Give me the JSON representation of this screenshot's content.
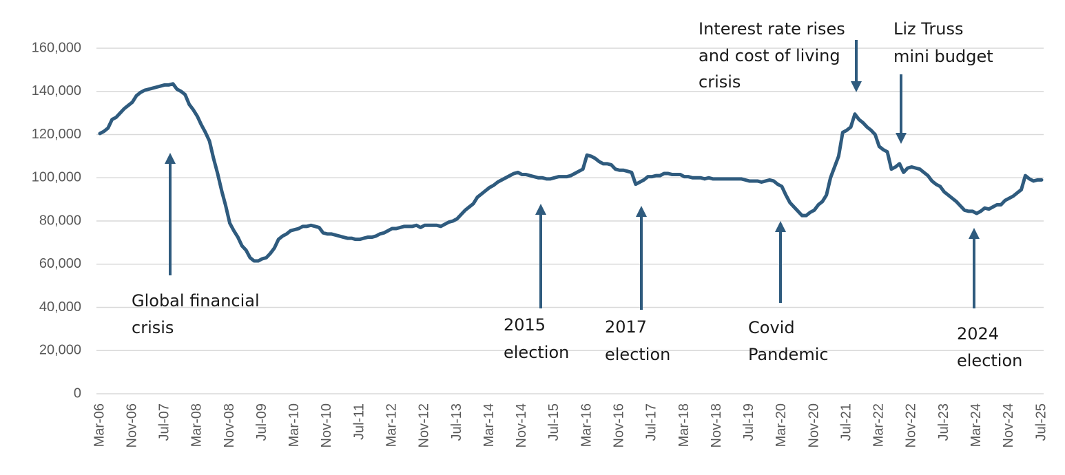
{
  "chart_data": {
    "type": "line",
    "color": "#2f5b7e",
    "grid": true,
    "annotations": [
      [
        "Global financial",
        "crisis"
      ],
      [
        "2015",
        "election"
      ],
      [
        "2017",
        "election"
      ],
      [
        "Covid",
        "Pandemic"
      ],
      [
        "Interest rate rises",
        "and cost of living",
        "crisis"
      ],
      [
        "Liz Truss",
        "mini budget"
      ],
      [
        "2024",
        "election"
      ]
    ],
    "ylim": [
      0,
      160000
    ],
    "yticks": [
      0,
      {
        "value": 20000,
        "label": "20,000"
      },
      {
        "value": 40000,
        "label": "40,000"
      },
      {
        "value": 60000,
        "label": "60,000"
      },
      {
        "value": 80000,
        "label": "80,000"
      },
      {
        "value": 100000,
        "label": "100,000"
      },
      {
        "value": 120000,
        "label": "120,000"
      },
      {
        "value": 140000,
        "label": "140,000"
      },
      {
        "value": 160000,
        "label": "160,000"
      }
    ],
    "categories": [
      "Mar-06",
      null,
      null,
      null,
      null,
      null,
      null,
      null,
      "Nov-06",
      null,
      null,
      null,
      null,
      null,
      null,
      null,
      "Jul-07",
      null,
      null,
      null,
      null,
      null,
      null,
      null,
      "Mar-08",
      null,
      null,
      null,
      null,
      null,
      null,
      null,
      "Nov-08",
      null,
      null,
      null,
      null,
      null,
      null,
      null,
      "Jul-09",
      null,
      null,
      null,
      null,
      null,
      null,
      null,
      "Mar-10",
      null,
      null,
      null,
      null,
      null,
      null,
      null,
      "Nov-10",
      null,
      null,
      null,
      null,
      null,
      null,
      null,
      "Jul-11",
      null,
      null,
      null,
      null,
      null,
      null,
      null,
      "Mar-12",
      null,
      null,
      null,
      null,
      null,
      null,
      null,
      "Nov-12",
      null,
      null,
      null,
      null,
      null,
      null,
      null,
      "Jul-13",
      null,
      null,
      null,
      null,
      null,
      null,
      null,
      "Mar-14",
      null,
      null,
      null,
      null,
      null,
      null,
      null,
      "Nov-14",
      null,
      null,
      null,
      null,
      null,
      null,
      null,
      "Jul-15",
      null,
      null,
      null,
      null,
      null,
      null,
      null,
      "Mar-16",
      null,
      null,
      null,
      null,
      null,
      null,
      null,
      "Nov-16",
      null,
      null,
      null,
      null,
      null,
      null,
      null,
      "Jul-17",
      null,
      null,
      null,
      null,
      null,
      null,
      null,
      "Mar-18",
      null,
      null,
      null,
      null,
      null,
      null,
      null,
      "Nov-18",
      null,
      null,
      null,
      null,
      null,
      null,
      null,
      "Jul-19",
      null,
      null,
      null,
      null,
      null,
      null,
      null,
      "Mar-20",
      null,
      null,
      null,
      null,
      null,
      null,
      null,
      "Nov-20",
      null,
      null,
      null,
      null,
      null,
      null,
      null,
      "Jul-21",
      null,
      null,
      null,
      null,
      null,
      null,
      null,
      "Mar-22",
      null,
      null,
      null,
      null,
      null,
      null,
      null,
      "Nov-22",
      null,
      null,
      null,
      null,
      null,
      null,
      null,
      "Jul-23",
      null,
      null,
      null,
      null,
      null,
      null,
      null,
      "Mar-24",
      null,
      null,
      null,
      null,
      null,
      null,
      null,
      "Nov-24",
      null,
      null,
      null,
      null,
      null,
      null,
      null,
      "Jul-25"
    ],
    "values": [
      120500,
      121500,
      123000,
      127000,
      128000,
      130000,
      132000,
      133500,
      135000,
      138000,
      139500,
      140500,
      141000,
      141500,
      142000,
      142500,
      143000,
      143000,
      143500,
      141000,
      140000,
      138500,
      134000,
      131500,
      128500,
      124500,
      121000,
      117000,
      109000,
      102000,
      94000,
      87000,
      79000,
      75500,
      72500,
      68500,
      66500,
      63000,
      61500,
      61500,
      62500,
      63000,
      65000,
      67500,
      71500,
      73000,
      74000,
      75500,
      76000,
      76500,
      77500,
      77500,
      78000,
      77500,
      77000,
      74500,
      74000,
      74000,
      73500,
      73000,
      72500,
      72000,
      72000,
      71500,
      71500,
      72000,
      72500,
      72500,
      73000,
      74000,
      74500,
      75500,
      76500,
      76500,
      77000,
      77500,
      77500,
      77500,
      78000,
      77000,
      78000,
      78000,
      78000,
      78000,
      77500,
      78500,
      79500,
      80000,
      81000,
      83000,
      85000,
      86500,
      88000,
      91000,
      92500,
      94000,
      95500,
      96500,
      98000,
      99000,
      100000,
      101000,
      102000,
      102500,
      101500,
      101500,
      101000,
      100500,
      100000,
      100000,
      99500,
      99500,
      100000,
      100500,
      100500,
      100500,
      101000,
      102000,
      103000,
      104000,
      110500,
      110000,
      109000,
      107500,
      106500,
      106500,
      106000,
      104000,
      103500,
      103500,
      103000,
      102500,
      97000,
      98000,
      99000,
      100500,
      100500,
      101000,
      101000,
      102000,
      102000,
      101500,
      101500,
      101500,
      100500,
      100500,
      100000,
      100000,
      100000,
      99500,
      100000,
      99500,
      99500,
      99500,
      99500,
      99500,
      99500,
      99500,
      99500,
      99000,
      98500,
      98500,
      98500,
      98000,
      98500,
      99000,
      98500,
      97000,
      96000,
      92000,
      88500,
      86500,
      84500,
      82500,
      82500,
      84000,
      85000,
      87500,
      89000,
      92000,
      100000,
      105000,
      110000,
      121000,
      122000,
      123500,
      129500,
      127000,
      125500,
      123500,
      122000,
      120000,
      114500,
      113000,
      112000,
      104000,
      105000,
      106500,
      102500,
      104500,
      105000,
      104500,
      104000,
      102500,
      101000,
      98500,
      97000,
      96000,
      93500,
      92000,
      90500,
      89000,
      87000,
      85000,
      84500,
      84500,
      83500,
      84500,
      86000,
      85500,
      86500,
      87500,
      87500,
      89500,
      90500,
      91500,
      93000,
      94500,
      101000,
      99500,
      98500,
      99000,
      99000
    ]
  }
}
